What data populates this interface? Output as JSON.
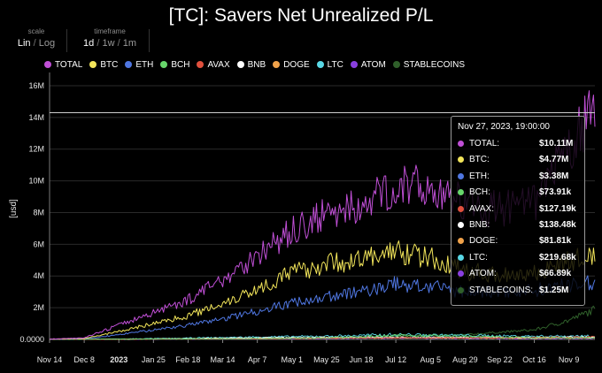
{
  "title": "[TC]: Savers Net Unrealized P/L",
  "controls": {
    "scale": {
      "label": "scale",
      "options": [
        "Lin",
        "Log"
      ],
      "selected": "Lin"
    },
    "timeframe": {
      "label": "timeframe",
      "options": [
        "1d",
        "1w",
        "1m"
      ],
      "selected": "1d"
    }
  },
  "tooltip": {
    "date": "Nov 27, 2023, 19:00:00",
    "rows": [
      {
        "name": "TOTAL:",
        "value": "$10.11M"
      },
      {
        "name": "BTC:",
        "value": "$4.77M"
      },
      {
        "name": "ETH:",
        "value": "$3.38M"
      },
      {
        "name": "BCH:",
        "value": "$73.91k"
      },
      {
        "name": "AVAX:",
        "value": "$127.19k"
      },
      {
        "name": "BNB:",
        "value": "$138.48k"
      },
      {
        "name": "DOGE:",
        "value": "$81.81k"
      },
      {
        "name": "LTC:",
        "value": "$219.68k"
      },
      {
        "name": "ATOM:",
        "value": "$66.89k"
      },
      {
        "name": "STABLECOINS:",
        "value": "$1.25M"
      }
    ]
  },
  "chart_data": {
    "type": "line",
    "title": "[TC]: Savers Net Unrealized P/L",
    "ylabel": "[usd]",
    "xlabel": "",
    "ylim": [
      0,
      16.5
    ],
    "y_unit": "M",
    "y_ticks": [
      0,
      2,
      4,
      6,
      8,
      10,
      12,
      14,
      16
    ],
    "y_tick_labels": [
      "0.0000",
      "2M",
      "4M",
      "6M",
      "8M",
      "10M",
      "12M",
      "14M",
      "16M"
    ],
    "x_range_days": [
      0,
      378
    ],
    "x_ticks": [
      0,
      24,
      48,
      72,
      96,
      120,
      144,
      168,
      192,
      216,
      240,
      264,
      288,
      312,
      336,
      360
    ],
    "x_tick_labels": [
      "Nov 14",
      "Dec 8",
      "2023",
      "Jan 25",
      "Feb 18",
      "Mar 14",
      "Apr 7",
      "May 1",
      "May 25",
      "Jun 18",
      "Jul 12",
      "Aug 5",
      "Aug 29",
      "Sep 22",
      "Oct 16",
      "Nov 9"
    ],
    "x_bold_ticks": [
      "2023"
    ],
    "crosshair_value": 14.3,
    "legend_position": "top",
    "series": [
      {
        "name": "TOTAL",
        "color": "#c04fd6",
        "x": [
          0,
          24,
          48,
          72,
          96,
          120,
          144,
          168,
          192,
          216,
          240,
          264,
          288,
          312,
          336,
          360,
          378
        ],
        "values": [
          0.02,
          0.1,
          0.9,
          1.7,
          2.5,
          3.8,
          5.3,
          6.8,
          7.9,
          8.4,
          9.7,
          9.6,
          8.5,
          8.2,
          8.6,
          12.0,
          14.5
        ]
      },
      {
        "name": "BTC",
        "color": "#f2e55a",
        "x": [
          0,
          24,
          48,
          72,
          96,
          120,
          144,
          168,
          192,
          216,
          240,
          264,
          288,
          312,
          336,
          360,
          378
        ],
        "values": [
          0.01,
          0.05,
          0.5,
          1.0,
          1.5,
          2.3,
          3.2,
          4.2,
          4.8,
          5.0,
          5.6,
          5.1,
          4.3,
          4.1,
          4.2,
          4.9,
          5.3
        ]
      },
      {
        "name": "ETH",
        "color": "#4f76e0",
        "x": [
          0,
          24,
          48,
          72,
          96,
          120,
          144,
          168,
          192,
          216,
          240,
          264,
          288,
          312,
          336,
          360,
          378
        ],
        "values": [
          0.0,
          0.03,
          0.3,
          0.6,
          0.9,
          1.3,
          1.8,
          2.3,
          2.7,
          3.0,
          3.5,
          3.3,
          3.0,
          3.0,
          3.1,
          3.4,
          3.6
        ]
      },
      {
        "name": "BCH",
        "color": "#67d66b",
        "x": [
          0,
          48,
          96,
          144,
          192,
          240,
          288,
          336,
          378
        ],
        "values": [
          0,
          0.02,
          0.04,
          0.06,
          0.1,
          0.25,
          0.2,
          0.1,
          0.1
        ]
      },
      {
        "name": "AVAX",
        "color": "#e0503d",
        "x": [
          0,
          48,
          96,
          144,
          192,
          240,
          288,
          336,
          378
        ],
        "values": [
          0,
          0.01,
          0.03,
          0.05,
          0.07,
          0.1,
          0.1,
          0.12,
          0.15
        ]
      },
      {
        "name": "BNB",
        "color": "#ffffff",
        "x": [
          0,
          48,
          96,
          144,
          192,
          240,
          288,
          336,
          378
        ],
        "values": [
          0,
          0.01,
          0.05,
          0.1,
          0.12,
          0.14,
          0.13,
          0.13,
          0.14
        ]
      },
      {
        "name": "DOGE",
        "color": "#f0a24a",
        "x": [
          0,
          48,
          96,
          144,
          192,
          240,
          288,
          336,
          378
        ],
        "values": [
          0,
          0.01,
          0.05,
          0.08,
          0.1,
          0.1,
          0.09,
          0.08,
          0.09
        ]
      },
      {
        "name": "LTC",
        "color": "#59d8e6",
        "x": [
          0,
          48,
          96,
          144,
          192,
          240,
          288,
          336,
          378
        ],
        "values": [
          0,
          0.02,
          0.08,
          0.15,
          0.2,
          0.3,
          0.25,
          0.2,
          0.22
        ]
      },
      {
        "name": "ATOM",
        "color": "#8a3fe0",
        "x": [
          0,
          48,
          96,
          144,
          192,
          240,
          288,
          336,
          378
        ],
        "values": [
          0,
          0.01,
          0.03,
          0.05,
          0.06,
          0.08,
          0.07,
          0.06,
          0.07
        ]
      },
      {
        "name": "STABLECOINS",
        "color": "#2f5f2a",
        "x": [
          0,
          48,
          96,
          144,
          192,
          240,
          288,
          336,
          360,
          378
        ],
        "values": [
          0,
          0.01,
          0.02,
          0.05,
          0.1,
          0.2,
          0.3,
          0.6,
          1.2,
          1.9
        ]
      }
    ]
  }
}
